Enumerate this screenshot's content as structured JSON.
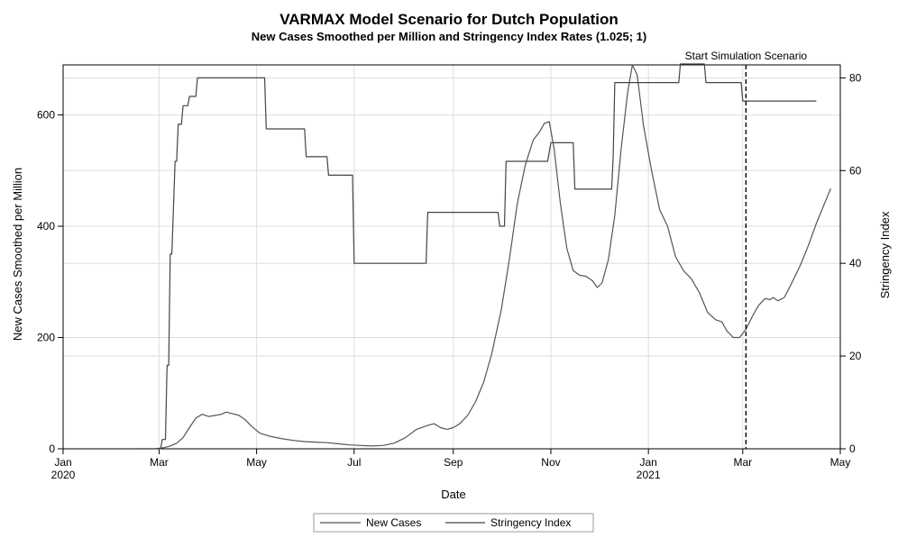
{
  "chart_data": {
    "type": "line",
    "title": "VARMAX Model Scenario for Dutch Population",
    "subtitle": "New Cases Smoothed per Million and Stringency Index Rates (1.025; 1)",
    "xlabel": "Date",
    "ylabel": "New Cases Smoothed per Million",
    "y2label": "Stringency Index",
    "xlim": [
      "2020-01-01",
      "2021-05-01"
    ],
    "ylim": [
      0,
      690
    ],
    "y2lim": [
      0,
      82.8
    ],
    "grid": true,
    "legend_position": "bottom",
    "x_ticks": [
      {
        "date": "2020-01-01",
        "label": "Jan",
        "year": "2020"
      },
      {
        "date": "2020-03-01",
        "label": "Mar",
        "year": ""
      },
      {
        "date": "2020-05-01",
        "label": "May",
        "year": ""
      },
      {
        "date": "2020-07-01",
        "label": "Jul",
        "year": ""
      },
      {
        "date": "2020-09-01",
        "label": "Sep",
        "year": ""
      },
      {
        "date": "2020-11-01",
        "label": "Nov",
        "year": ""
      },
      {
        "date": "2021-01-01",
        "label": "Jan",
        "year": "2021"
      },
      {
        "date": "2021-03-01",
        "label": "Mar",
        "year": ""
      },
      {
        "date": "2021-05-01",
        "label": "May",
        "year": ""
      }
    ],
    "y_ticks": [
      0,
      200,
      400,
      600
    ],
    "y2_ticks": [
      0,
      20,
      40,
      60,
      80
    ],
    "annotation": {
      "label": "Start Simulation Scenario",
      "date": "2021-03-03"
    },
    "series": [
      {
        "name": "New Cases",
        "axis": "left",
        "color": "#555555",
        "points": [
          [
            "2020-02-15",
            0
          ],
          [
            "2020-02-27",
            0
          ],
          [
            "2020-03-04",
            2
          ],
          [
            "2020-03-08",
            5
          ],
          [
            "2020-03-12",
            10
          ],
          [
            "2020-03-16",
            20
          ],
          [
            "2020-03-20",
            38
          ],
          [
            "2020-03-24",
            55
          ],
          [
            "2020-03-28",
            62
          ],
          [
            "2020-04-01",
            58
          ],
          [
            "2020-04-05",
            60
          ],
          [
            "2020-04-09",
            62
          ],
          [
            "2020-04-12",
            66
          ],
          [
            "2020-04-16",
            63
          ],
          [
            "2020-04-20",
            60
          ],
          [
            "2020-04-24",
            52
          ],
          [
            "2020-04-28",
            40
          ],
          [
            "2020-05-03",
            28
          ],
          [
            "2020-05-10",
            22
          ],
          [
            "2020-05-17",
            18
          ],
          [
            "2020-05-24",
            15
          ],
          [
            "2020-05-31",
            13
          ],
          [
            "2020-06-07",
            12
          ],
          [
            "2020-06-14",
            11
          ],
          [
            "2020-06-21",
            9
          ],
          [
            "2020-06-28",
            7
          ],
          [
            "2020-07-05",
            6
          ],
          [
            "2020-07-12",
            5
          ],
          [
            "2020-07-19",
            6
          ],
          [
            "2020-07-26",
            10
          ],
          [
            "2020-08-02",
            20
          ],
          [
            "2020-08-09",
            35
          ],
          [
            "2020-08-16",
            42
          ],
          [
            "2020-08-20",
            45
          ],
          [
            "2020-08-24",
            38
          ],
          [
            "2020-08-28",
            35
          ],
          [
            "2020-09-01",
            38
          ],
          [
            "2020-09-05",
            45
          ],
          [
            "2020-09-10",
            60
          ],
          [
            "2020-09-15",
            85
          ],
          [
            "2020-09-20",
            120
          ],
          [
            "2020-09-25",
            170
          ],
          [
            "2020-10-01",
            250
          ],
          [
            "2020-10-06",
            340
          ],
          [
            "2020-10-11",
            440
          ],
          [
            "2020-10-16",
            510
          ],
          [
            "2020-10-21",
            555
          ],
          [
            "2020-10-25",
            570
          ],
          [
            "2020-10-28",
            585
          ],
          [
            "2020-10-31",
            588
          ],
          [
            "2020-11-03",
            540
          ],
          [
            "2020-11-07",
            440
          ],
          [
            "2020-11-11",
            360
          ],
          [
            "2020-11-15",
            320
          ],
          [
            "2020-11-19",
            312
          ],
          [
            "2020-11-23",
            310
          ],
          [
            "2020-11-27",
            302
          ],
          [
            "2020-11-30",
            290
          ],
          [
            "2020-12-03",
            298
          ],
          [
            "2020-12-07",
            340
          ],
          [
            "2020-12-11",
            420
          ],
          [
            "2020-12-15",
            540
          ],
          [
            "2020-12-19",
            640
          ],
          [
            "2020-12-22",
            690
          ],
          [
            "2020-12-25",
            672
          ],
          [
            "2020-12-29",
            580
          ],
          [
            "2021-01-03",
            500
          ],
          [
            "2021-01-08",
            430
          ],
          [
            "2021-01-13",
            400
          ],
          [
            "2021-01-18",
            345
          ],
          [
            "2021-01-23",
            320
          ],
          [
            "2021-01-28",
            305
          ],
          [
            "2021-02-02",
            280
          ],
          [
            "2021-02-07",
            245
          ],
          [
            "2021-02-12",
            232
          ],
          [
            "2021-02-16",
            228
          ],
          [
            "2021-02-19",
            212
          ],
          [
            "2021-02-23",
            200
          ],
          [
            "2021-02-27",
            200
          ],
          [
            "2021-03-03",
            215
          ],
          [
            "2021-03-07",
            238
          ],
          [
            "2021-03-11",
            258
          ],
          [
            "2021-03-15",
            270
          ],
          [
            "2021-03-18",
            268
          ],
          [
            "2021-03-20",
            272
          ],
          [
            "2021-03-23",
            266
          ],
          [
            "2021-03-27",
            272
          ],
          [
            "2021-04-01",
            300
          ],
          [
            "2021-04-06",
            330
          ],
          [
            "2021-04-11",
            365
          ],
          [
            "2021-04-16",
            405
          ],
          [
            "2021-04-21",
            440
          ],
          [
            "2021-04-25",
            468
          ]
        ]
      },
      {
        "name": "Stringency Index",
        "axis": "right",
        "color": "#444444",
        "points": [
          [
            "2020-02-15",
            0
          ],
          [
            "2020-03-02",
            0
          ],
          [
            "2020-03-03",
            2
          ],
          [
            "2020-03-05",
            2
          ],
          [
            "2020-03-06",
            18
          ],
          [
            "2020-03-07",
            18
          ],
          [
            "2020-03-08",
            42
          ],
          [
            "2020-03-09",
            42
          ],
          [
            "2020-03-10",
            52
          ],
          [
            "2020-03-11",
            62
          ],
          [
            "2020-03-12",
            62
          ],
          [
            "2020-03-13",
            70
          ],
          [
            "2020-03-15",
            70
          ],
          [
            "2020-03-16",
            74
          ],
          [
            "2020-03-19",
            74
          ],
          [
            "2020-03-20",
            76
          ],
          [
            "2020-03-24",
            76
          ],
          [
            "2020-03-25",
            80
          ],
          [
            "2020-05-06",
            80
          ],
          [
            "2020-05-07",
            69
          ],
          [
            "2020-05-31",
            69
          ],
          [
            "2020-06-01",
            63
          ],
          [
            "2020-06-14",
            63
          ],
          [
            "2020-06-15",
            59
          ],
          [
            "2020-06-30",
            59
          ],
          [
            "2020-07-01",
            40
          ],
          [
            "2020-08-15",
            40
          ],
          [
            "2020-08-16",
            51
          ],
          [
            "2020-09-29",
            51
          ],
          [
            "2020-09-30",
            48
          ],
          [
            "2020-10-03",
            48
          ],
          [
            "2020-10-04",
            62
          ],
          [
            "2020-10-30",
            62
          ],
          [
            "2020-11-01",
            66
          ],
          [
            "2020-11-15",
            66
          ],
          [
            "2020-11-16",
            56
          ],
          [
            "2020-12-09",
            56
          ],
          [
            "2020-12-10",
            63
          ],
          [
            "2020-12-11",
            79
          ],
          [
            "2021-01-20",
            79
          ],
          [
            "2021-01-21",
            83
          ],
          [
            "2021-02-05",
            83
          ],
          [
            "2021-02-06",
            79
          ],
          [
            "2021-02-28",
            79
          ],
          [
            "2021-03-01",
            75
          ],
          [
            "2021-04-16",
            75
          ]
        ]
      }
    ]
  }
}
